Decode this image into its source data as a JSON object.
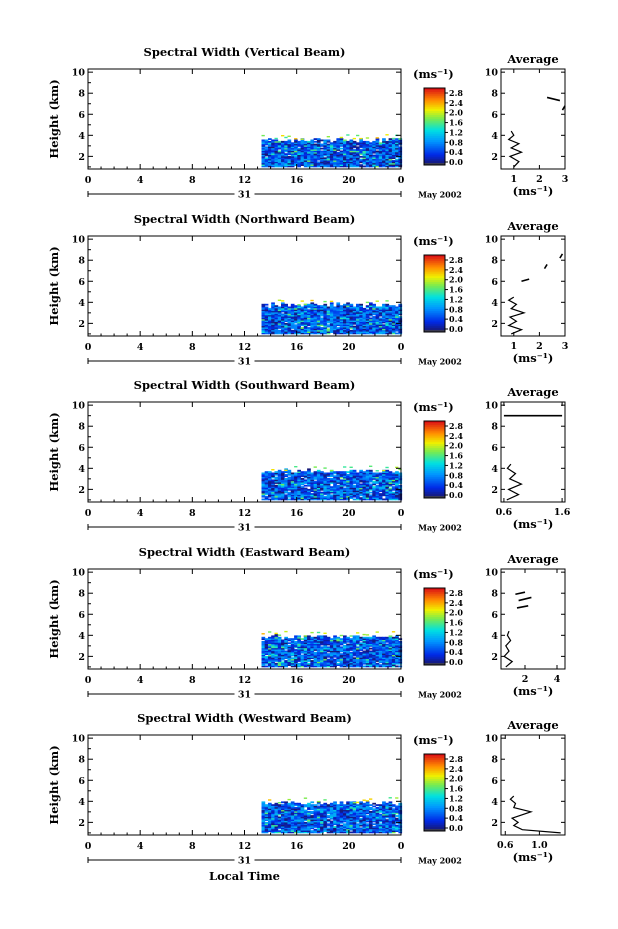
{
  "figure": {
    "xlabel": "Local Time",
    "date_label": "May 2002",
    "day_label": "31",
    "unit_label": "(ms⁻¹)",
    "colorbar_ticks": [
      "2.8",
      "2.4",
      "2.0",
      "1.6",
      "1.2",
      "0.8",
      "0.4",
      "0.0"
    ],
    "average_title": "Average",
    "average_xlabel": "(ms⁻¹)"
  },
  "chart_data": [
    {
      "type": "heatmap",
      "title": "Spectral Width (Vertical Beam)",
      "xlabel": "",
      "ylabel": "Height (km)",
      "x_ticks": [
        "0",
        "4",
        "8",
        "12",
        "16",
        "20",
        "0"
      ],
      "y_ticks": [
        "2",
        "4",
        "6",
        "8",
        "10"
      ],
      "xlim": [
        0,
        24
      ],
      "ylim": [
        0.8,
        10.3
      ],
      "data_extent": {
        "time": [
          13.3,
          24
        ],
        "height": [
          1,
          3.5
        ]
      },
      "mean_width": 0.9,
      "average": {
        "title": "Average",
        "xlabel": "(ms⁻¹)",
        "x_ticks": [
          "1",
          "2",
          "3"
        ],
        "y_ticks": [
          "2",
          "4",
          "6",
          "8",
          "10"
        ],
        "xlim": [
          0.5,
          3
        ],
        "ylim": [
          0.8,
          10.3
        ],
        "profile": [
          [
            1.0,
            1.0
          ],
          [
            1.2,
            1.5
          ],
          [
            0.85,
            2.0
          ],
          [
            1.3,
            2.4
          ],
          [
            0.9,
            2.8
          ],
          [
            1.2,
            3.2
          ],
          [
            0.8,
            3.6
          ],
          [
            1.0,
            4.0
          ],
          [
            0.9,
            4.4
          ]
        ],
        "segments": [
          [
            [
              2.3,
              7.6
            ],
            [
              2.8,
              7.3
            ]
          ],
          [
            [
              2.9,
              6.4
            ],
            [
              3.0,
              6.8
            ]
          ]
        ]
      }
    },
    {
      "type": "heatmap",
      "title": "Spectral Width (Northward Beam)",
      "xlabel": "",
      "ylabel": "Height (km)",
      "x_ticks": [
        "0",
        "4",
        "8",
        "12",
        "16",
        "20",
        "0"
      ],
      "y_ticks": [
        "2",
        "4",
        "6",
        "8",
        "10"
      ],
      "xlim": [
        0,
        24
      ],
      "ylim": [
        0.8,
        10.3
      ],
      "data_extent": {
        "time": [
          13.3,
          24
        ],
        "height": [
          1,
          3.7
        ]
      },
      "mean_width": 0.9,
      "average": {
        "title": "Average",
        "xlabel": "(ms⁻¹)",
        "x_ticks": [
          "1",
          "2",
          "3"
        ],
        "y_ticks": [
          "2",
          "4",
          "6",
          "8",
          "10"
        ],
        "xlim": [
          0.5,
          3
        ],
        "ylim": [
          0.8,
          10.3
        ],
        "profile": [
          [
            0.9,
            1.0
          ],
          [
            1.3,
            1.4
          ],
          [
            0.8,
            1.8
          ],
          [
            1.1,
            2.2
          ],
          [
            0.85,
            2.6
          ],
          [
            1.4,
            3.0
          ],
          [
            0.9,
            3.4
          ],
          [
            1.1,
            3.8
          ],
          [
            0.8,
            4.2
          ],
          [
            1.0,
            4.5
          ]
        ],
        "segments": [
          [
            [
              1.3,
              6.0
            ],
            [
              1.6,
              6.2
            ]
          ],
          [
            [
              2.2,
              7.2
            ],
            [
              2.3,
              7.6
            ]
          ],
          [
            [
              2.8,
              8.2
            ],
            [
              2.9,
              8.6
            ]
          ]
        ]
      }
    },
    {
      "type": "heatmap",
      "title": "Spectral Width (Southward Beam)",
      "xlabel": "",
      "ylabel": "Height (km)",
      "x_ticks": [
        "0",
        "4",
        "8",
        "12",
        "16",
        "20",
        "0"
      ],
      "y_ticks": [
        "2",
        "4",
        "6",
        "8",
        "10"
      ],
      "xlim": [
        0,
        24
      ],
      "ylim": [
        0.8,
        10.3
      ],
      "data_extent": {
        "time": [
          13.3,
          24
        ],
        "height": [
          1,
          3.7
        ]
      },
      "mean_width": 0.9,
      "average": {
        "title": "Average",
        "xlabel": "(ms⁻¹)",
        "x_ticks": [
          "0.6",
          "1.6"
        ],
        "y_ticks": [
          "2",
          "4",
          "6",
          "8",
          "10"
        ],
        "xlim": [
          0.55,
          1.65
        ],
        "ylim": [
          0.8,
          10.3
        ],
        "profile": [
          [
            0.65,
            1.0
          ],
          [
            0.85,
            1.5
          ],
          [
            0.68,
            2.0
          ],
          [
            0.9,
            2.5
          ],
          [
            0.7,
            3.0
          ],
          [
            0.8,
            3.5
          ],
          [
            0.66,
            4.0
          ],
          [
            0.72,
            4.4
          ]
        ],
        "segments": [
          [
            [
              0.6,
              9.0
            ],
            [
              1.6,
              9.0
            ]
          ]
        ]
      }
    },
    {
      "type": "heatmap",
      "title": "Spectral Width (Eastward Beam)",
      "xlabel": "",
      "ylabel": "Height (km)",
      "x_ticks": [
        "0",
        "4",
        "8",
        "12",
        "16",
        "20",
        "0"
      ],
      "y_ticks": [
        "2",
        "4",
        "6",
        "8",
        "10"
      ],
      "xlim": [
        0,
        24
      ],
      "ylim": [
        0.8,
        10.3
      ],
      "data_extent": {
        "time": [
          13.3,
          24
        ],
        "height": [
          1,
          3.8
        ]
      },
      "mean_width": 0.9,
      "average": {
        "title": "Average",
        "xlabel": "(ms⁻¹)",
        "x_ticks": [
          "2",
          "4"
        ],
        "y_ticks": [
          "2",
          "4",
          "6",
          "8",
          "10"
        ],
        "xlim": [
          0.5,
          4.5
        ],
        "ylim": [
          0.8,
          10.3
        ],
        "profile": [
          [
            0.8,
            1.0
          ],
          [
            1.2,
            1.5
          ],
          [
            0.7,
            2.0
          ],
          [
            1.0,
            2.5
          ],
          [
            0.8,
            3.0
          ],
          [
            1.1,
            3.5
          ],
          [
            0.9,
            4.0
          ],
          [
            1.0,
            4.4
          ]
        ],
        "segments": [
          [
            [
              1.5,
              6.6
            ],
            [
              2.2,
              6.8
            ]
          ],
          [
            [
              1.6,
              7.3
            ],
            [
              2.4,
              7.6
            ]
          ],
          [
            [
              1.4,
              7.9
            ],
            [
              2.0,
              8.1
            ]
          ]
        ]
      }
    },
    {
      "type": "heatmap",
      "title": "Spectral Width (Westward Beam)",
      "xlabel": "Local Time",
      "ylabel": "Height (km)",
      "x_ticks": [
        "0",
        "4",
        "8",
        "12",
        "16",
        "20",
        "0"
      ],
      "y_ticks": [
        "2",
        "4",
        "6",
        "8",
        "10"
      ],
      "xlim": [
        0,
        24
      ],
      "ylim": [
        0.8,
        10.3
      ],
      "data_extent": {
        "time": [
          13.3,
          24
        ],
        "height": [
          1,
          3.8
        ]
      },
      "mean_width": 0.9,
      "average": {
        "title": "Average",
        "xlabel": "(ms⁻¹)",
        "x_ticks": [
          "0.6",
          "1.0"
        ],
        "y_ticks": [
          "2",
          "4",
          "6",
          "8",
          "10"
        ],
        "xlim": [
          0.55,
          1.3
        ],
        "ylim": [
          0.8,
          10.3
        ],
        "profile": [
          [
            1.25,
            1.0
          ],
          [
            0.8,
            1.3
          ],
          [
            0.7,
            1.7
          ],
          [
            0.75,
            2.0
          ],
          [
            0.68,
            2.4
          ],
          [
            0.9,
            3.0
          ],
          [
            0.7,
            3.4
          ],
          [
            0.72,
            3.8
          ],
          [
            0.66,
            4.2
          ],
          [
            0.7,
            4.5
          ]
        ],
        "segments": []
      }
    }
  ]
}
